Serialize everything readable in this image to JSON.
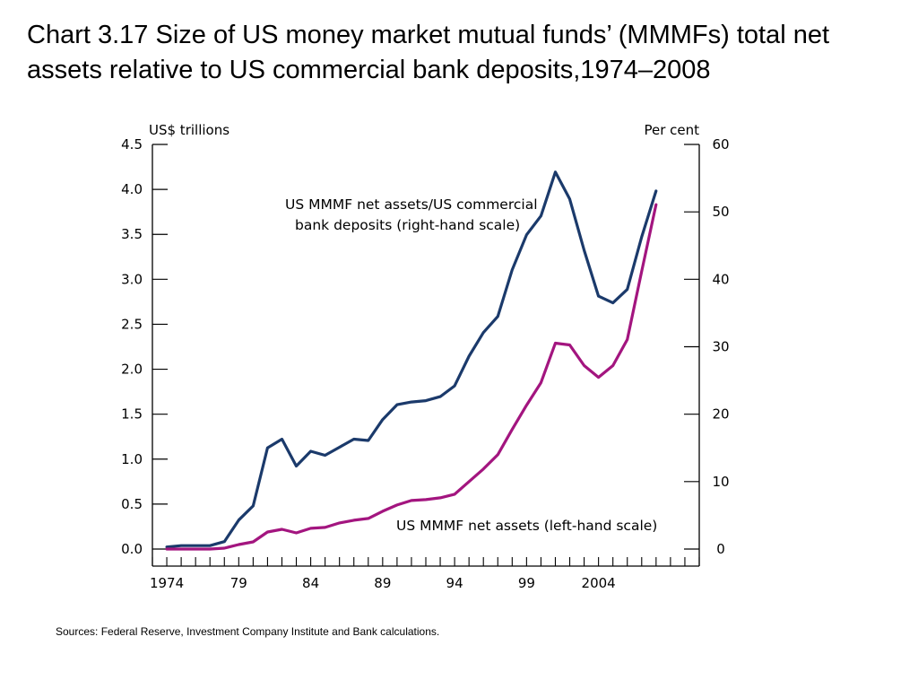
{
  "title": "Chart 3.17  Size of US money market mutual funds’ (MMMFs) total net assets relative to US commercial bank deposits,1974–2008",
  "sources": "Sources:  Federal Reserve, Investment Company Institute and Bank calculations.",
  "colors": {
    "ratio_series": "#1b3a6b",
    "assets_series": "#a3157f",
    "axis": "#000000"
  },
  "chart_data": {
    "type": "line",
    "left_axis_unit": "US$ trillions",
    "right_axis_unit": "Per cent",
    "ylim_left": [
      0,
      4.5
    ],
    "ylim_right": [
      0,
      60
    ],
    "xlim": [
      1973,
      2011
    ],
    "x_tick_labels": [
      {
        "x": 1974,
        "label": "1974"
      },
      {
        "x": 1979,
        "label": "79"
      },
      {
        "x": 1984,
        "label": "84"
      },
      {
        "x": 1989,
        "label": "89"
      },
      {
        "x": 1994,
        "label": "94"
      },
      {
        "x": 1999,
        "label": "99"
      },
      {
        "x": 2004,
        "label": "2004"
      }
    ],
    "y_left_ticks": [
      "0.0",
      "0.5",
      "1.0",
      "1.5",
      "2.0",
      "2.5",
      "3.0",
      "3.5",
      "4.0",
      "4.5"
    ],
    "y_right_ticks": [
      "0",
      "10",
      "20",
      "30",
      "40",
      "50",
      "60"
    ],
    "grid": false,
    "series": [
      {
        "name": "US MMMF net assets/US commercial bank deposits (right-hand scale)",
        "axis": "right",
        "x": [
          1974,
          1975,
          1976,
          1977,
          1978,
          1979,
          1980,
          1981,
          1982,
          1983,
          1984,
          1985,
          1986,
          1987,
          1988,
          1989,
          1990,
          1991,
          1992,
          1993,
          1994,
          1995,
          1996,
          1997,
          1998,
          1999,
          2000,
          2001,
          2002,
          2003,
          2004,
          2005,
          2006,
          2007,
          2008
        ],
        "y": [
          0.3,
          0.5,
          0.5,
          0.5,
          1.1,
          4.3,
          6.4,
          15.0,
          16.3,
          12.3,
          14.5,
          13.9,
          15.1,
          16.3,
          16.1,
          19.2,
          21.4,
          21.8,
          22.0,
          22.6,
          24.2,
          28.6,
          32.1,
          34.5,
          41.4,
          46.6,
          49.4,
          55.9,
          51.9,
          44.3,
          37.5,
          36.5,
          38.5,
          46.3,
          53.1
        ]
      },
      {
        "name": "US MMMF net assets (left-hand scale)",
        "axis": "left",
        "x": [
          1974,
          1975,
          1976,
          1977,
          1978,
          1979,
          1980,
          1981,
          1982,
          1983,
          1984,
          1985,
          1986,
          1987,
          1988,
          1989,
          1990,
          1991,
          1992,
          1993,
          1994,
          1995,
          1996,
          1997,
          1998,
          1999,
          2000,
          2001,
          2002,
          2003,
          2004,
          2005,
          2006,
          2007,
          2008
        ],
        "y": [
          0.0,
          0.0,
          0.0,
          0.0,
          0.01,
          0.05,
          0.08,
          0.19,
          0.22,
          0.18,
          0.23,
          0.24,
          0.29,
          0.32,
          0.34,
          0.42,
          0.49,
          0.54,
          0.55,
          0.57,
          0.61,
          0.75,
          0.89,
          1.05,
          1.33,
          1.6,
          1.85,
          2.29,
          2.27,
          2.04,
          1.91,
          2.04,
          2.33,
          3.09,
          3.83
        ]
      }
    ],
    "annotations": [
      {
        "lines": [
          "US MMMF net assets/US commercial",
          "bank deposits (right-hand scale)"
        ]
      },
      {
        "lines": [
          "US MMMF net assets (left-hand scale)"
        ]
      }
    ]
  }
}
